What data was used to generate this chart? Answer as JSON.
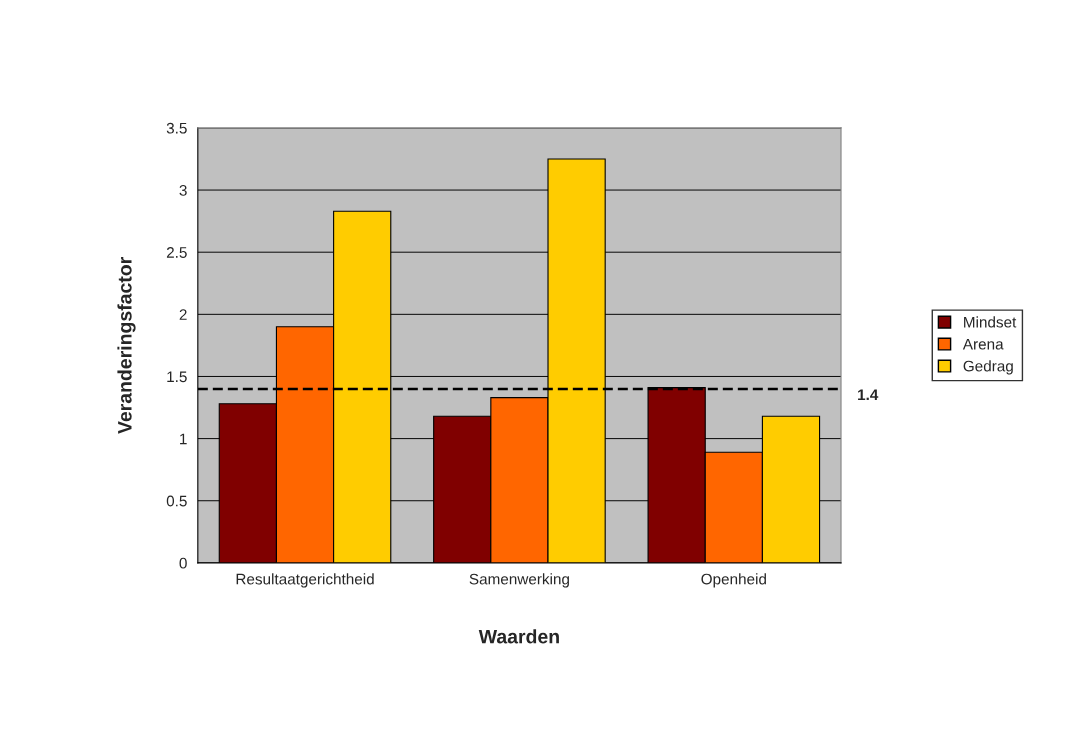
{
  "chart_data": {
    "type": "bar",
    "xlabel": "Waarden",
    "ylabel": "Veranderingsfactor",
    "categories": [
      "Resultaatgerichtheid",
      "Samenwerking",
      "Openheid"
    ],
    "series": [
      {
        "name": "Mindset",
        "color": "#800000",
        "values": [
          1.28,
          1.18,
          1.41
        ]
      },
      {
        "name": "Arena",
        "color": "#ff6600",
        "values": [
          1.9,
          1.33,
          0.89
        ]
      },
      {
        "name": "Gedrag",
        "color": "#ffcc00",
        "values": [
          2.83,
          3.25,
          1.18
        ]
      }
    ],
    "ylim": [
      0,
      3.5
    ],
    "yticks": [
      0,
      0.5,
      1,
      1.5,
      2,
      2.5,
      3,
      3.5
    ],
    "ref_lines": [
      {
        "axis": "y",
        "value": 1.4,
        "label": "1.4",
        "color": "#000000",
        "line_style": "dashed"
      }
    ],
    "grid": "y",
    "legend": "right"
  }
}
